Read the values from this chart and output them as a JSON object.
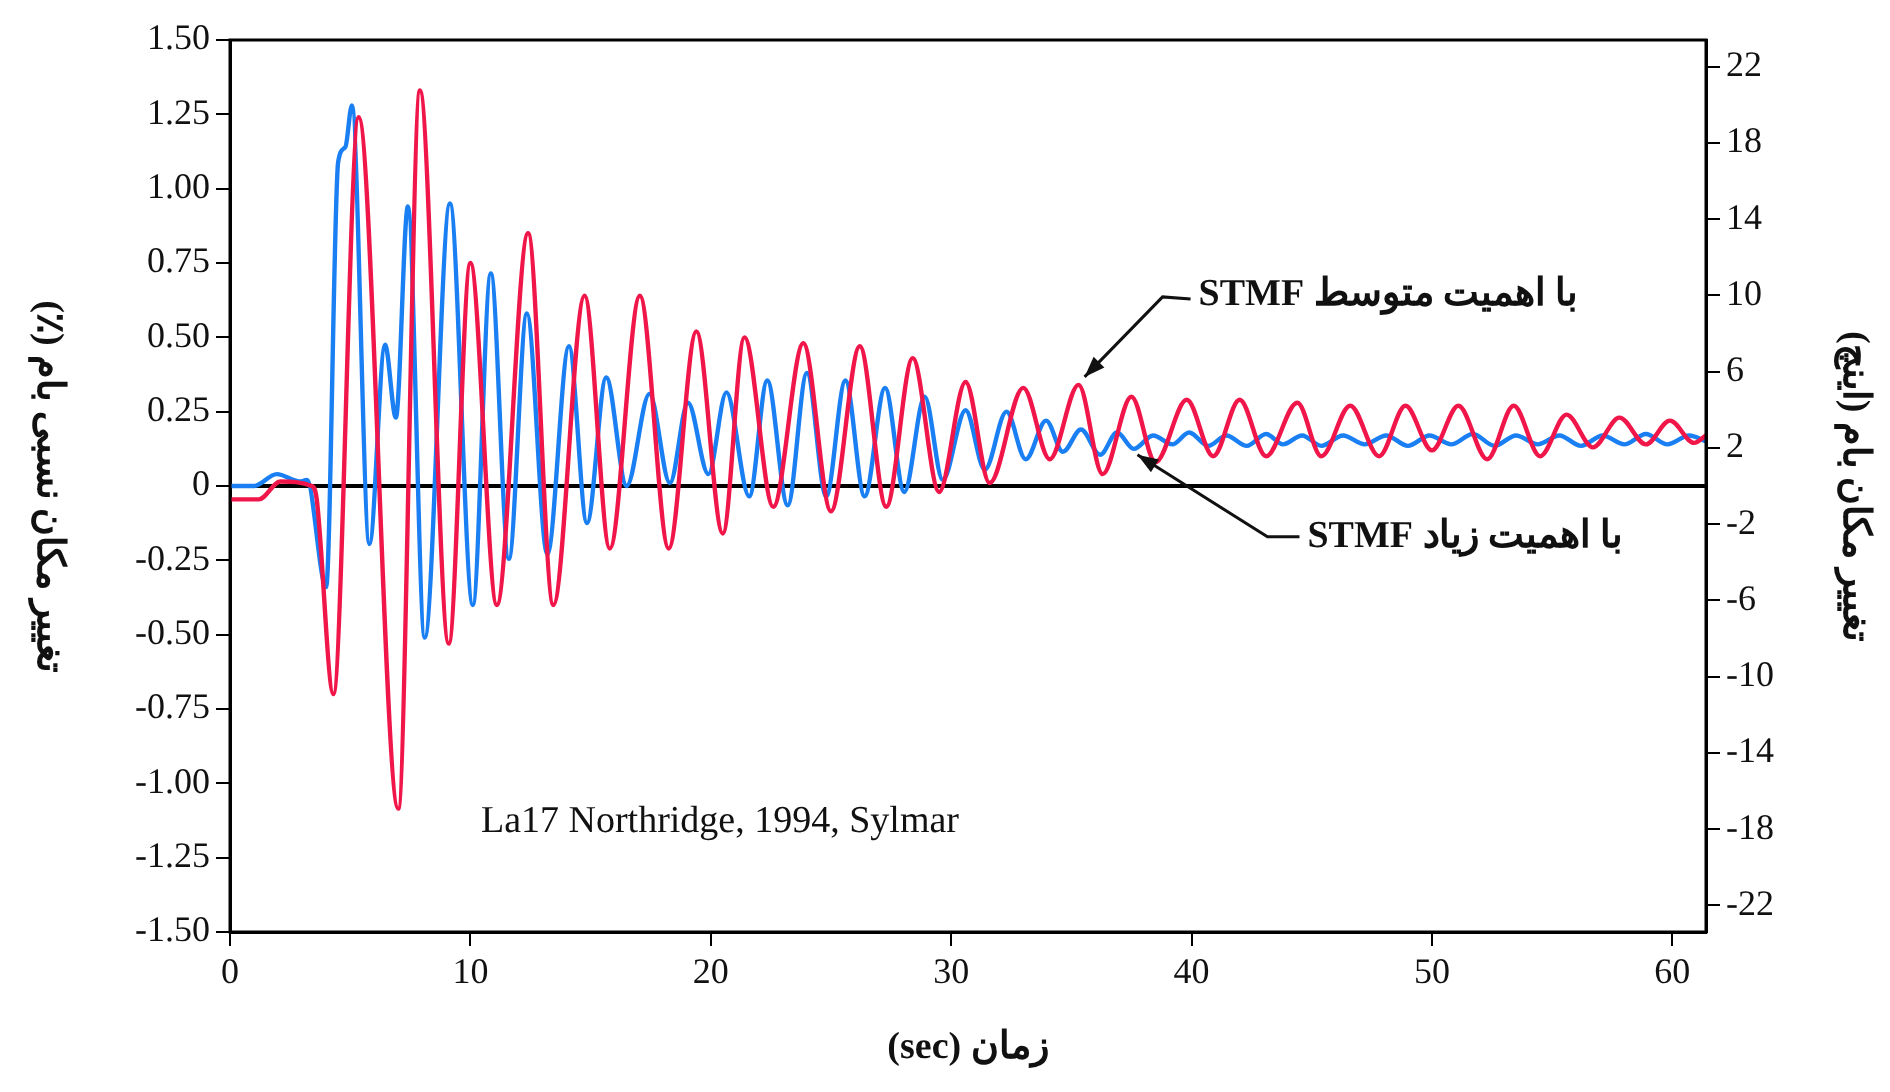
{
  "chart_data": {
    "type": "line",
    "xlabel": "زمان (sec)",
    "ylabel": "تغییر مکان نسبی بام (٪)",
    "y2label": "تغییر مکان بام (اینچ)",
    "xlim": [
      0,
      61.4
    ],
    "xticks": [
      0,
      10,
      20,
      30,
      40,
      50,
      60
    ],
    "ylim": [
      -1.5,
      1.5
    ],
    "yticks": [
      {
        "value": -1.5,
        "label": "-1.50"
      },
      {
        "value": -1.25,
        "label": "-1.25"
      },
      {
        "value": -1,
        "label": "-1.00"
      },
      {
        "value": -0.75,
        "label": "-0.75"
      },
      {
        "value": -0.5,
        "label": "-0.50"
      },
      {
        "value": -0.25,
        "label": "-0.25"
      },
      {
        "value": 0,
        "label": "0"
      },
      {
        "value": 0.25,
        "label": "0.25"
      },
      {
        "value": 0.5,
        "label": "0.50"
      },
      {
        "value": 0.75,
        "label": "0.75"
      },
      {
        "value": 1,
        "label": "1.00"
      },
      {
        "value": 1.25,
        "label": "1.25"
      },
      {
        "value": 1.5,
        "label": "1.50"
      }
    ],
    "y2lim": [
      -23.4,
      23.4
    ],
    "y2ticks": [
      -22,
      -18,
      -14,
      -10,
      -6,
      -2,
      2,
      6,
      10,
      14,
      18,
      22
    ],
    "grid": false,
    "legend": false,
    "marker": "none",
    "line_style": "solid",
    "ref_lines": [
      {
        "axis": "y",
        "value": 0,
        "color": "#000000"
      }
    ],
    "annotations": [
      {
        "text": "با اهمیت متوسط STMF",
        "x": 35.3,
        "y": 0.34
      },
      {
        "text": "با اهمیت زیاد STMF",
        "x": 37.5,
        "y": 0.125
      },
      "La17 Northridge, 1994, Sylmar"
    ],
    "series": [
      {
        "color": "#f0164a",
        "x": [
          0,
          1.2,
          2.1,
          3.4,
          3.6,
          4.3,
          5.35,
          7.0,
          7.9,
          9.1,
          10.0,
          11.1,
          12.4,
          13.45,
          14.75,
          15.8,
          17.05,
          18.25,
          19.4,
          20.5,
          21.4,
          22.6,
          23.85,
          25.0,
          26.2,
          27.3,
          28.4,
          29.5,
          30.6,
          31.6,
          33.0,
          34.1,
          35.3,
          36.3,
          37.5,
          38.5,
          39.8,
          40.9,
          42.0,
          43.1,
          44.4,
          45.4,
          46.6,
          47.8,
          48.9,
          50.0,
          51.1,
          52.3,
          53.4,
          54.5,
          55.6,
          56.7,
          57.8,
          58.9,
          59.9,
          60.9,
          61.4
        ],
        "values": [
          -0.045,
          -0.045,
          0.015,
          0.0,
          -0.04,
          -0.7,
          1.24,
          -1.085,
          1.33,
          -0.53,
          0.75,
          -0.4,
          0.85,
          -0.4,
          0.64,
          -0.21,
          0.64,
          -0.21,
          0.52,
          -0.16,
          0.5,
          -0.07,
          0.48,
          -0.085,
          0.47,
          -0.07,
          0.43,
          -0.02,
          0.35,
          0.01,
          0.33,
          0.09,
          0.34,
          0.04,
          0.3,
          0.08,
          0.29,
          0.1,
          0.29,
          0.1,
          0.28,
          0.1,
          0.27,
          0.1,
          0.27,
          0.12,
          0.27,
          0.09,
          0.27,
          0.1,
          0.24,
          0.13,
          0.23,
          0.14,
          0.22,
          0.145,
          0.17
        ]
      },
      {
        "color": "#1a7ff2",
        "x": [
          0,
          1.0,
          1.95,
          2.9,
          3.2,
          4.0,
          4.5,
          4.8,
          5.07,
          5.8,
          6.45,
          6.9,
          7.4,
          8.1,
          9.15,
          10.1,
          10.85,
          11.6,
          12.35,
          13.2,
          14.1,
          14.85,
          15.65,
          16.5,
          17.45,
          18.3,
          19.05,
          19.9,
          20.65,
          21.6,
          22.35,
          23.2,
          24.0,
          24.8,
          25.6,
          26.4,
          27.25,
          28.05,
          28.9,
          29.65,
          30.6,
          31.4,
          32.3,
          33.1,
          33.95,
          34.65,
          35.4,
          36.2,
          36.9,
          37.6,
          38.4,
          39.2,
          39.9,
          40.7,
          41.45,
          42.3,
          43.1,
          43.8,
          44.6,
          45.4,
          46.3,
          47.2,
          48.1,
          49.0,
          49.9,
          50.8,
          51.7,
          52.6,
          53.5,
          54.4,
          55.3,
          56.2,
          57.1,
          58.0,
          58.9,
          59.8,
          60.7,
          61.4
        ],
        "values": [
          0,
          0,
          0.04,
          0.015,
          0.02,
          -0.34,
          1.09,
          1.14,
          1.28,
          -0.195,
          0.475,
          0.23,
          0.94,
          -0.51,
          0.95,
          -0.4,
          0.715,
          -0.245,
          0.58,
          -0.23,
          0.47,
          -0.125,
          0.365,
          0,
          0.31,
          0.01,
          0.28,
          0.04,
          0.315,
          -0.035,
          0.355,
          -0.065,
          0.38,
          -0.035,
          0.355,
          -0.035,
          0.33,
          -0.02,
          0.3,
          0.02,
          0.255,
          0.055,
          0.25,
          0.09,
          0.22,
          0.115,
          0.19,
          0.105,
          0.18,
          0.125,
          0.17,
          0.14,
          0.18,
          0.135,
          0.17,
          0.135,
          0.175,
          0.14,
          0.17,
          0.135,
          0.17,
          0.14,
          0.17,
          0.135,
          0.17,
          0.14,
          0.175,
          0.135,
          0.17,
          0.14,
          0.17,
          0.135,
          0.17,
          0.14,
          0.175,
          0.14,
          0.17,
          0.15
        ]
      }
    ]
  }
}
